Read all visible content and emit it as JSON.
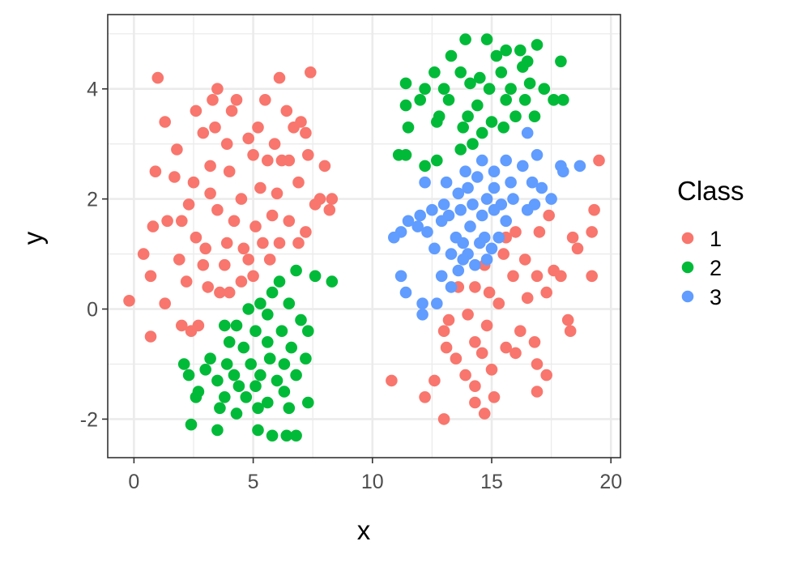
{
  "chart_data": {
    "type": "scatter",
    "title": "",
    "xlabel": "x",
    "ylabel": "y",
    "xlim": [
      -1.1,
      20.4
    ],
    "ylim": [
      -2.7,
      5.35
    ],
    "x_ticks": [
      0,
      5,
      10,
      15,
      20
    ],
    "x_tick_labels": [
      "0",
      "5",
      "10",
      "15",
      "20"
    ],
    "y_ticks": [
      -2,
      0,
      2,
      4
    ],
    "y_tick_labels": [
      "-2",
      "0",
      "2",
      "4"
    ],
    "grid": true,
    "legend_placement": "right",
    "legend": {
      "title": "Class"
    },
    "series": [
      {
        "name": "1",
        "color": "#F8766D",
        "points": [
          [
            1.0,
            4.2
          ],
          [
            3.5,
            4.0
          ],
          [
            6.1,
            4.2
          ],
          [
            7.4,
            4.3
          ],
          [
            3.3,
            3.8
          ],
          [
            4.3,
            3.8
          ],
          [
            5.5,
            3.8
          ],
          [
            6.4,
            3.6
          ],
          [
            4.1,
            3.6
          ],
          [
            2.6,
            3.6
          ],
          [
            3.4,
            3.3
          ],
          [
            1.3,
            3.4
          ],
          [
            5.2,
            3.3
          ],
          [
            6.7,
            3.3
          ],
          [
            7.0,
            3.4
          ],
          [
            7.2,
            3.2
          ],
          [
            4.8,
            3.1
          ],
          [
            3.9,
            3.0
          ],
          [
            2.9,
            3.2
          ],
          [
            5.9,
            3.0
          ],
          [
            5.0,
            2.8
          ],
          [
            6.5,
            2.7
          ],
          [
            3.2,
            2.6
          ],
          [
            1.8,
            2.9
          ],
          [
            0.9,
            2.5
          ],
          [
            1.7,
            2.4
          ],
          [
            2.5,
            2.3
          ],
          [
            4.0,
            2.5
          ],
          [
            5.6,
            2.7
          ],
          [
            6.2,
            2.7
          ],
          [
            7.3,
            2.8
          ],
          [
            8.0,
            2.6
          ],
          [
            5.3,
            2.2
          ],
          [
            6.0,
            2.1
          ],
          [
            6.9,
            2.3
          ],
          [
            7.8,
            2.0
          ],
          [
            8.3,
            2.0
          ],
          [
            8.2,
            1.8
          ],
          [
            7.6,
            1.9
          ],
          [
            4.5,
            2.0
          ],
          [
            3.2,
            2.1
          ],
          [
            2.3,
            1.9
          ],
          [
            2.0,
            1.6
          ],
          [
            3.5,
            1.8
          ],
          [
            4.2,
            1.6
          ],
          [
            5.1,
            1.5
          ],
          [
            5.8,
            1.7
          ],
          [
            6.5,
            1.6
          ],
          [
            7.2,
            1.4
          ],
          [
            1.4,
            1.6
          ],
          [
            0.8,
            1.5
          ],
          [
            2.6,
            1.3
          ],
          [
            3.0,
            1.1
          ],
          [
            3.9,
            1.2
          ],
          [
            4.6,
            1.1
          ],
          [
            5.4,
            1.2
          ],
          [
            6.1,
            1.2
          ],
          [
            6.9,
            1.2
          ],
          [
            0.4,
            1.0
          ],
          [
            1.9,
            0.9
          ],
          [
            2.9,
            0.8
          ],
          [
            3.8,
            0.8
          ],
          [
            4.8,
            0.9
          ],
          [
            5.7,
            0.9
          ],
          [
            0.7,
            0.6
          ],
          [
            2.2,
            0.5
          ],
          [
            3.1,
            0.4
          ],
          [
            4.0,
            0.3
          ],
          [
            5.0,
            0.6
          ],
          [
            4.5,
            0.5
          ],
          [
            1.3,
            0.1
          ],
          [
            3.6,
            0.3
          ],
          [
            -0.2,
            0.15
          ],
          [
            2.0,
            -0.3
          ],
          [
            2.7,
            -0.3
          ],
          [
            2.4,
            -0.4
          ],
          [
            0.7,
            -0.5
          ],
          [
            17.4,
            1.7
          ],
          [
            16.0,
            1.4
          ],
          [
            15.6,
            1.3
          ],
          [
            17.0,
            1.4
          ],
          [
            18.4,
            1.3
          ],
          [
            19.2,
            1.4
          ],
          [
            19.5,
            2.7
          ],
          [
            19.3,
            1.8
          ],
          [
            18.6,
            1.1
          ],
          [
            17.6,
            0.7
          ],
          [
            16.4,
            0.9
          ],
          [
            15.5,
            1.0
          ],
          [
            14.7,
            0.8
          ],
          [
            16.9,
            0.6
          ],
          [
            15.9,
            0.6
          ],
          [
            14.3,
            0.4
          ],
          [
            13.6,
            0.4
          ],
          [
            14.9,
            0.3
          ],
          [
            16.5,
            0.2
          ],
          [
            17.3,
            0.3
          ],
          [
            19.2,
            0.6
          ],
          [
            17.9,
            0.6
          ],
          [
            15.3,
            0.1
          ],
          [
            14.0,
            -0.1
          ],
          [
            13.2,
            -0.2
          ],
          [
            14.8,
            -0.3
          ],
          [
            16.2,
            -0.4
          ],
          [
            18.2,
            -0.2
          ],
          [
            18.3,
            -0.4
          ],
          [
            13.0,
            -0.4
          ],
          [
            13.1,
            -0.7
          ],
          [
            14.3,
            -0.6
          ],
          [
            15.6,
            -0.7
          ],
          [
            16.8,
            -0.6
          ],
          [
            14.6,
            -0.8
          ],
          [
            16.0,
            -0.8
          ],
          [
            13.5,
            -0.9
          ],
          [
            15.0,
            -1.1
          ],
          [
            16.9,
            -1.0
          ],
          [
            17.3,
            -1.2
          ],
          [
            13.9,
            -1.2
          ],
          [
            10.8,
            -1.3
          ],
          [
            12.6,
            -1.3
          ],
          [
            14.3,
            -1.4
          ],
          [
            16.9,
            -1.5
          ],
          [
            15.1,
            -1.6
          ],
          [
            12.2,
            -1.6
          ],
          [
            14.3,
            -1.7
          ],
          [
            14.7,
            -1.9
          ],
          [
            13.0,
            -2.0
          ]
        ]
      },
      {
        "name": "2",
        "color": "#00BA38",
        "points": [
          [
            13.9,
            4.9
          ],
          [
            14.8,
            4.9
          ],
          [
            15.6,
            4.7
          ],
          [
            16.2,
            4.7
          ],
          [
            16.9,
            4.8
          ],
          [
            13.3,
            4.6
          ],
          [
            15.2,
            4.6
          ],
          [
            16.5,
            4.5
          ],
          [
            17.9,
            4.5
          ],
          [
            12.6,
            4.3
          ],
          [
            13.7,
            4.3
          ],
          [
            14.5,
            4.2
          ],
          [
            15.4,
            4.3
          ],
          [
            16.3,
            4.4
          ],
          [
            11.4,
            4.1
          ],
          [
            12.2,
            4.0
          ],
          [
            13.0,
            4.0
          ],
          [
            14.1,
            4.1
          ],
          [
            14.9,
            4.0
          ],
          [
            15.8,
            4.0
          ],
          [
            16.6,
            4.1
          ],
          [
            17.2,
            4.0
          ],
          [
            12.0,
            3.8
          ],
          [
            13.2,
            3.8
          ],
          [
            14.4,
            3.7
          ],
          [
            15.6,
            3.8
          ],
          [
            16.4,
            3.8
          ],
          [
            17.6,
            3.8
          ],
          [
            18.0,
            3.8
          ],
          [
            11.4,
            3.7
          ],
          [
            12.8,
            3.5
          ],
          [
            14.0,
            3.5
          ],
          [
            15.0,
            3.4
          ],
          [
            16.0,
            3.5
          ],
          [
            16.8,
            3.5
          ],
          [
            12.7,
            3.4
          ],
          [
            11.5,
            3.3
          ],
          [
            13.8,
            3.3
          ],
          [
            14.6,
            3.2
          ],
          [
            15.5,
            3.3
          ],
          [
            14.2,
            3.0
          ],
          [
            13.7,
            2.9
          ],
          [
            11.1,
            2.8
          ],
          [
            11.4,
            2.8
          ],
          [
            12.2,
            2.6
          ],
          [
            12.7,
            2.7
          ],
          [
            6.8,
            0.7
          ],
          [
            7.6,
            0.6
          ],
          [
            6.1,
            0.5
          ],
          [
            8.3,
            0.5
          ],
          [
            5.8,
            0.3
          ],
          [
            5.3,
            0.1
          ],
          [
            6.5,
            0.1
          ],
          [
            4.8,
            0.0
          ],
          [
            5.6,
            -0.1
          ],
          [
            7.0,
            -0.2
          ],
          [
            3.8,
            -0.3
          ],
          [
            4.3,
            -0.3
          ],
          [
            5.1,
            -0.4
          ],
          [
            6.2,
            -0.4
          ],
          [
            7.3,
            -0.4
          ],
          [
            4.0,
            -0.6
          ],
          [
            4.6,
            -0.7
          ],
          [
            5.6,
            -0.6
          ],
          [
            6.6,
            -0.7
          ],
          [
            7.2,
            -0.9
          ],
          [
            3.2,
            -0.9
          ],
          [
            3.9,
            -1.0
          ],
          [
            4.9,
            -1.0
          ],
          [
            5.7,
            -0.9
          ],
          [
            6.3,
            -1.0
          ],
          [
            2.1,
            -1.0
          ],
          [
            3.0,
            -1.1
          ],
          [
            4.2,
            -1.2
          ],
          [
            5.3,
            -1.2
          ],
          [
            6.0,
            -1.3
          ],
          [
            6.8,
            -1.2
          ],
          [
            2.3,
            -1.2
          ],
          [
            3.5,
            -1.3
          ],
          [
            4.4,
            -1.4
          ],
          [
            5.1,
            -1.4
          ],
          [
            6.3,
            -1.5
          ],
          [
            2.7,
            -1.5
          ],
          [
            3.8,
            -1.6
          ],
          [
            4.7,
            -1.6
          ],
          [
            5.6,
            -1.7
          ],
          [
            2.6,
            -1.6
          ],
          [
            7.3,
            -1.7
          ],
          [
            3.6,
            -1.8
          ],
          [
            4.3,
            -1.9
          ],
          [
            5.2,
            -1.8
          ],
          [
            6.5,
            -1.8
          ],
          [
            2.4,
            -2.1
          ],
          [
            5.2,
            -2.2
          ],
          [
            5.8,
            -2.3
          ],
          [
            6.4,
            -2.3
          ],
          [
            6.8,
            -2.3
          ],
          [
            3.5,
            -2.2
          ]
        ]
      },
      {
        "name": "3",
        "color": "#619CFF",
        "points": [
          [
            16.5,
            3.2
          ],
          [
            16.9,
            2.8
          ],
          [
            15.6,
            2.7
          ],
          [
            14.6,
            2.7
          ],
          [
            16.3,
            2.6
          ],
          [
            15.1,
            2.5
          ],
          [
            17.9,
            2.6
          ],
          [
            18.7,
            2.6
          ],
          [
            18.0,
            2.5
          ],
          [
            13.9,
            2.5
          ],
          [
            14.4,
            2.4
          ],
          [
            15.8,
            2.3
          ],
          [
            16.7,
            2.3
          ],
          [
            13.1,
            2.3
          ],
          [
            12.2,
            2.3
          ],
          [
            14.0,
            2.2
          ],
          [
            15.1,
            2.2
          ],
          [
            17.1,
            2.2
          ],
          [
            13.6,
            2.1
          ],
          [
            14.8,
            2.0
          ],
          [
            15.9,
            2.0
          ],
          [
            17.5,
            2.0
          ],
          [
            13.0,
            1.9
          ],
          [
            14.2,
            1.9
          ],
          [
            15.4,
            1.9
          ],
          [
            16.8,
            1.9
          ],
          [
            12.5,
            1.8
          ],
          [
            13.7,
            1.8
          ],
          [
            15.1,
            1.8
          ],
          [
            16.5,
            1.8
          ],
          [
            12.0,
            1.7
          ],
          [
            13.2,
            1.7
          ],
          [
            14.6,
            1.7
          ],
          [
            11.5,
            1.6
          ],
          [
            12.9,
            1.6
          ],
          [
            14.1,
            1.5
          ],
          [
            15.6,
            1.6
          ],
          [
            11.9,
            1.5
          ],
          [
            11.2,
            1.4
          ],
          [
            12.3,
            1.4
          ],
          [
            13.5,
            1.3
          ],
          [
            14.7,
            1.3
          ],
          [
            15.3,
            1.3
          ],
          [
            10.9,
            1.3
          ],
          [
            13.8,
            1.2
          ],
          [
            14.5,
            1.2
          ],
          [
            15.0,
            1.1
          ],
          [
            12.6,
            1.1
          ],
          [
            13.3,
            1.0
          ],
          [
            14.0,
            1.0
          ],
          [
            14.8,
            0.9
          ],
          [
            13.8,
            0.9
          ],
          [
            14.3,
            0.8
          ],
          [
            13.6,
            0.7
          ],
          [
            12.9,
            0.6
          ],
          [
            11.2,
            0.6
          ],
          [
            13.3,
            0.4
          ],
          [
            11.4,
            0.3
          ],
          [
            12.1,
            0.1
          ],
          [
            12.7,
            0.1
          ],
          [
            12.1,
            -0.1
          ]
        ]
      }
    ]
  }
}
